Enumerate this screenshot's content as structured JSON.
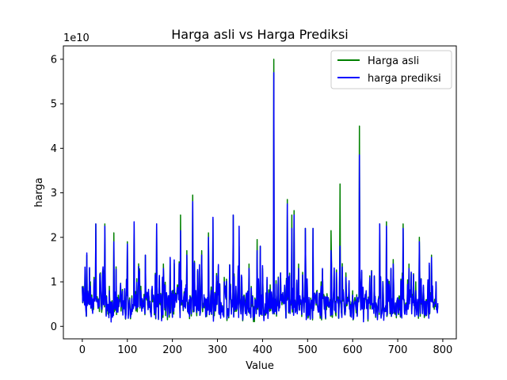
{
  "chart_data": {
    "type": "line",
    "title": "Harga asli vs Harga Prediksi",
    "xlabel": "Value",
    "ylabel": "harga",
    "y_offset_label": "1e10",
    "y_scale": 10000000000,
    "xlim": [
      -42,
      830
    ],
    "ylim": [
      -0.28,
      6.3
    ],
    "xticks": [
      0,
      100,
      200,
      300,
      400,
      500,
      600,
      700,
      800
    ],
    "yticks": [
      0,
      1,
      2,
      3,
      4,
      5,
      6
    ],
    "grid": false,
    "legend_position": "top-right",
    "series": [
      {
        "name": "Harga asli",
        "color": "#008000",
        "peaks": [
          [
            0,
            0.9
          ],
          [
            10,
            1.6
          ],
          [
            18,
            1.0
          ],
          [
            30,
            2.3
          ],
          [
            40,
            1.2
          ],
          [
            50,
            2.3
          ],
          [
            60,
            0.9
          ],
          [
            70,
            2.1
          ],
          [
            80,
            0.7
          ],
          [
            100,
            1.9
          ],
          [
            115,
            2.3
          ],
          [
            130,
            0.9
          ],
          [
            140,
            1.6
          ],
          [
            155,
            0.8
          ],
          [
            165,
            2.3
          ],
          [
            180,
            1.4
          ],
          [
            195,
            1.5
          ],
          [
            210,
            0.8
          ],
          [
            218,
            2.5
          ],
          [
            232,
            1.7
          ],
          [
            245,
            2.95
          ],
          [
            265,
            1.7
          ],
          [
            280,
            2.1
          ],
          [
            290,
            2.4
          ],
          [
            300,
            1.0
          ],
          [
            315,
            1.1
          ],
          [
            335,
            2.5
          ],
          [
            348,
            1.8
          ],
          [
            360,
            0.6
          ],
          [
            370,
            1.4
          ],
          [
            388,
            1.95
          ],
          [
            395,
            1.8
          ],
          [
            410,
            1.05
          ],
          [
            425,
            6.0
          ],
          [
            440,
            1.2
          ],
          [
            455,
            2.85
          ],
          [
            465,
            2.5
          ],
          [
            470,
            2.6
          ],
          [
            480,
            1.4
          ],
          [
            495,
            2.2
          ],
          [
            512,
            2.2
          ],
          [
            530,
            1.0
          ],
          [
            552,
            2.15
          ],
          [
            572,
            3.2
          ],
          [
            585,
            1.2
          ],
          [
            600,
            0.8
          ],
          [
            615,
            4.5
          ],
          [
            630,
            0.8
          ],
          [
            660,
            2.3
          ],
          [
            675,
            2.35
          ],
          [
            690,
            1.5
          ],
          [
            712,
            2.3
          ],
          [
            725,
            1.4
          ],
          [
            740,
            1.0
          ],
          [
            748,
            2.0
          ],
          [
            765,
            0.6
          ],
          [
            775,
            1.6
          ],
          [
            785,
            1.0
          ]
        ]
      },
      {
        "name": "harga prediksi",
        "color": "#0000ff",
        "peaks": [
          [
            0,
            0.9
          ],
          [
            10,
            1.65
          ],
          [
            18,
            0.9
          ],
          [
            30,
            2.3
          ],
          [
            40,
            1.1
          ],
          [
            50,
            2.25
          ],
          [
            60,
            0.8
          ],
          [
            70,
            1.9
          ],
          [
            80,
            0.6
          ],
          [
            100,
            1.85
          ],
          [
            115,
            2.35
          ],
          [
            130,
            0.8
          ],
          [
            140,
            1.6
          ],
          [
            155,
            0.9
          ],
          [
            165,
            2.3
          ],
          [
            180,
            1.3
          ],
          [
            195,
            1.55
          ],
          [
            210,
            0.7
          ],
          [
            218,
            2.15
          ],
          [
            232,
            1.6
          ],
          [
            245,
            2.8
          ],
          [
            265,
            1.6
          ],
          [
            280,
            2.0
          ],
          [
            290,
            2.45
          ],
          [
            300,
            0.9
          ],
          [
            315,
            1.0
          ],
          [
            335,
            2.5
          ],
          [
            348,
            2.25
          ],
          [
            360,
            0.5
          ],
          [
            370,
            1.3
          ],
          [
            388,
            1.7
          ],
          [
            395,
            1.8
          ],
          [
            410,
            1.1
          ],
          [
            425,
            5.7
          ],
          [
            440,
            1.2
          ],
          [
            455,
            2.75
          ],
          [
            465,
            2.2
          ],
          [
            470,
            2.5
          ],
          [
            480,
            1.3
          ],
          [
            495,
            2.2
          ],
          [
            512,
            2.2
          ],
          [
            530,
            0.9
          ],
          [
            552,
            1.7
          ],
          [
            572,
            1.8
          ],
          [
            585,
            1.1
          ],
          [
            600,
            0.7
          ],
          [
            615,
            3.85
          ],
          [
            630,
            0.8
          ],
          [
            660,
            2.3
          ],
          [
            675,
            2.25
          ],
          [
            690,
            1.4
          ],
          [
            712,
            2.2
          ],
          [
            725,
            1.3
          ],
          [
            740,
            0.8
          ],
          [
            748,
            1.9
          ],
          [
            765,
            0.5
          ],
          [
            775,
            1.55
          ],
          [
            785,
            1.0
          ]
        ]
      }
    ],
    "n_points": 790
  }
}
